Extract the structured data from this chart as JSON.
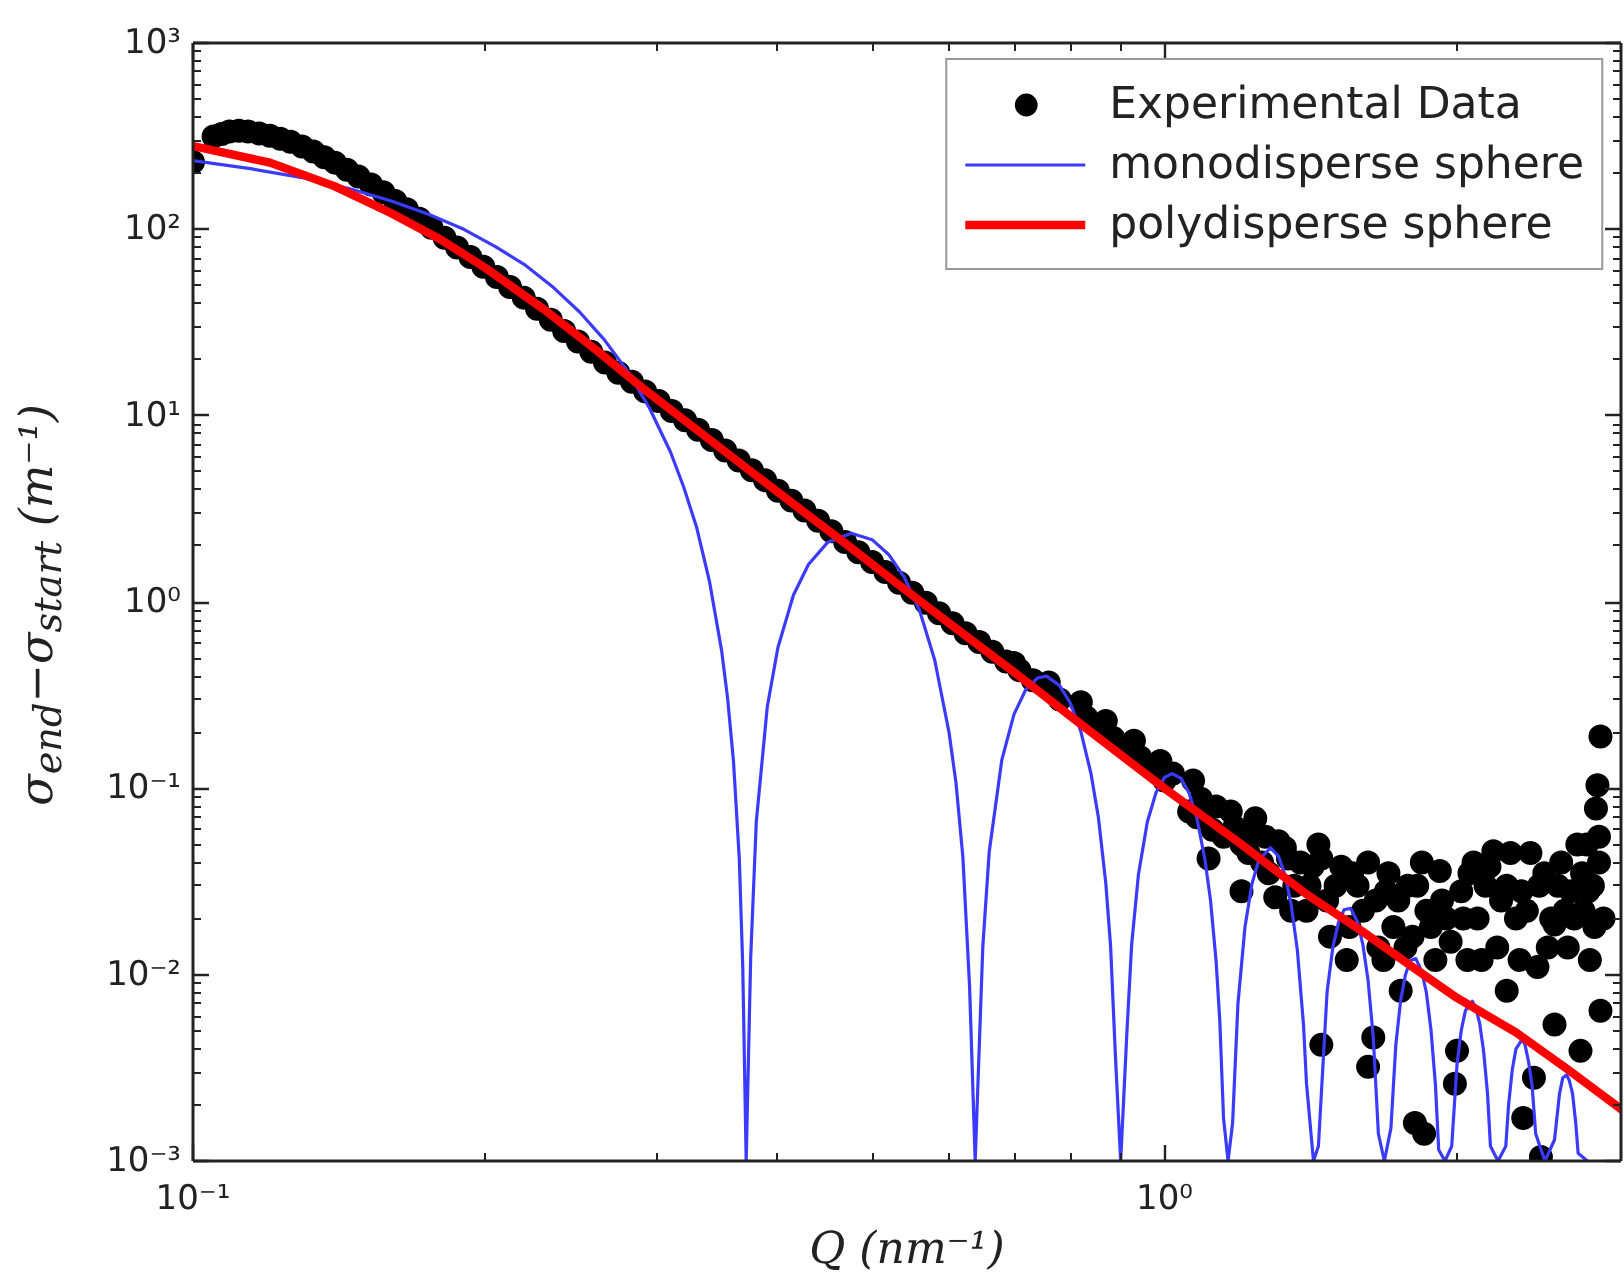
{
  "chart_data": {
    "type": "line",
    "xlabel": "Q (nm⁻¹)",
    "ylabel": "σ$_{end}$−σ$_{start}$ (m⁻¹)",
    "log": "xy",
    "grid": false,
    "legend": "top right",
    "xlim": [
      0.1,
      2.95
    ],
    "ylim": [
      0.001,
      1000
    ],
    "xticks": [
      {
        "value": 0.1,
        "label": "10⁻¹"
      },
      {
        "value": 0.2,
        "label": null
      },
      {
        "value": 0.3,
        "label": null
      },
      {
        "value": 0.4,
        "label": null
      },
      {
        "value": 0.5,
        "label": null
      },
      {
        "value": 0.6,
        "label": null
      },
      {
        "value": 0.7,
        "label": null
      },
      {
        "value": 0.8,
        "label": null
      },
      {
        "value": 0.9,
        "label": null
      },
      {
        "value": 1,
        "label": "10⁰"
      },
      {
        "value": 2,
        "label": null
      }
    ],
    "yticks": [
      {
        "value": 0.001,
        "label": "10⁻³"
      },
      {
        "value": 0.002,
        "label": null
      },
      {
        "value": 0.003,
        "label": null
      },
      {
        "value": 0.004,
        "label": null
      },
      {
        "value": 0.005,
        "label": null
      },
      {
        "value": 0.006,
        "label": null
      },
      {
        "value": 0.007,
        "label": null
      },
      {
        "value": 0.008,
        "label": null
      },
      {
        "value": 0.009,
        "label": null
      },
      {
        "value": 0.01,
        "label": "10⁻²"
      },
      {
        "value": 0.02,
        "label": null
      },
      {
        "value": 0.03,
        "label": null
      },
      {
        "value": 0.04,
        "label": null
      },
      {
        "value": 0.05,
        "label": null
      },
      {
        "value": 0.06,
        "label": null
      },
      {
        "value": 0.07,
        "label": null
      },
      {
        "value": 0.08,
        "label": null
      },
      {
        "value": 0.09,
        "label": null
      },
      {
        "value": 0.1,
        "label": "10⁻¹"
      },
      {
        "value": 0.2,
        "label": null
      },
      {
        "value": 0.3,
        "label": null
      },
      {
        "value": 0.4,
        "label": null
      },
      {
        "value": 0.5,
        "label": null
      },
      {
        "value": 0.6,
        "label": null
      },
      {
        "value": 0.7,
        "label": null
      },
      {
        "value": 0.8,
        "label": null
      },
      {
        "value": 0.9,
        "label": null
      },
      {
        "value": 1,
        "label": "10⁰"
      },
      {
        "value": 2,
        "label": null
      },
      {
        "value": 3,
        "label": null
      },
      {
        "value": 4,
        "label": null
      },
      {
        "value": 5,
        "label": null
      },
      {
        "value": 6,
        "label": null
      },
      {
        "value": 7,
        "label": null
      },
      {
        "value": 8,
        "label": null
      },
      {
        "value": 9,
        "label": null
      },
      {
        "value": 10,
        "label": "10¹"
      },
      {
        "value": 20,
        "label": null
      },
      {
        "value": 30,
        "label": null
      },
      {
        "value": 40,
        "label": null
      },
      {
        "value": 50,
        "label": null
      },
      {
        "value": 60,
        "label": null
      },
      {
        "value": 70,
        "label": null
      },
      {
        "value": 80,
        "label": null
      },
      {
        "value": 90,
        "label": null
      },
      {
        "value": 100,
        "label": "10²"
      },
      {
        "value": 200,
        "label": null
      },
      {
        "value": 300,
        "label": null
      },
      {
        "value": 400,
        "label": null
      },
      {
        "value": 500,
        "label": null
      },
      {
        "value": 600,
        "label": null
      },
      {
        "value": 700,
        "label": null
      },
      {
        "value": 800,
        "label": null
      },
      {
        "value": 900,
        "label": null
      },
      {
        "value": 1000,
        "label": "10³"
      }
    ],
    "series": [
      {
        "name": "Experimental Data",
        "type": "scatter",
        "marker": "circle",
        "color": "#000000",
        "x": [
          0.1,
          0.105,
          0.107,
          0.109,
          0.1115,
          0.114,
          0.117,
          0.12,
          0.123,
          0.126,
          0.1295,
          0.133,
          0.1365,
          0.14,
          0.144,
          0.148,
          0.1525,
          0.157,
          0.1615,
          0.166,
          0.171,
          0.176,
          0.1815,
          0.187,
          0.193,
          0.199,
          0.2055,
          0.212,
          0.219,
          0.226,
          0.2335,
          0.241,
          0.249,
          0.257,
          0.2655,
          0.274,
          0.283,
          0.292,
          0.3015,
          0.311,
          0.321,
          0.331,
          0.342,
          0.353,
          0.3645,
          0.376,
          0.388,
          0.4,
          0.413,
          0.426,
          0.44,
          0.454,
          0.469,
          0.484,
          0.5,
          0.516,
          0.533,
          0.55,
          0.568,
          0.586,
          0.605,
          0.624,
          0.6445,
          0.665,
          0.687,
          0.7,
          0.709,
          0.732,
          0.76,
          0.78,
          0.82,
          0.831,
          0.858,
          0.87,
          0.886,
          0.914,
          0.93,
          0.944,
          0.974,
          0.99,
          1.0,
          1.02,
          1.06,
          1.07,
          1.08,
          1.09,
          1.11,
          1.12,
          1.13,
          1.15,
          1.17,
          1.18,
          1.2,
          1.2,
          1.22,
          1.23,
          1.24,
          1.26,
          1.27,
          1.28,
          1.3,
          1.31,
          1.33,
          1.34,
          1.35,
          1.36,
          1.38,
          1.4,
          1.41,
          1.42,
          1.44,
          1.45,
          1.45,
          1.47,
          1.48,
          1.5,
          1.52,
          1.54,
          1.55,
          1.56,
          1.58,
          1.6,
          1.62,
          1.62,
          1.64,
          1.65,
          1.66,
          1.68,
          1.69,
          1.7,
          1.72,
          1.74,
          1.75,
          1.77,
          1.78,
          1.8,
          1.81,
          1.82,
          1.84,
          1.85,
          1.86,
          1.88,
          1.9,
          1.92,
          1.93,
          1.95,
          1.97,
          1.99,
          2.0,
          2.02,
          2.03,
          2.05,
          2.06,
          2.08,
          2.1,
          2.12,
          2.14,
          2.16,
          2.18,
          2.2,
          2.22,
          2.25,
          2.25,
          2.27,
          2.3,
          2.32,
          2.33,
          2.34,
          2.36,
          2.38,
          2.4,
          2.42,
          2.43,
          2.44,
          2.46,
          2.48,
          2.5,
          2.52,
          2.52,
          2.54,
          2.56,
          2.58,
          2.6,
          2.62,
          2.64,
          2.66,
          2.68,
          2.69,
          2.7,
          2.72,
          2.73,
          2.74,
          2.76,
          2.77,
          2.78,
          2.79,
          2.8,
          2.8,
          2.81,
          2.81,
          2.83
        ],
        "values": [
          230,
          315,
          325,
          335,
          338,
          335,
          327,
          318,
          306,
          295,
          278,
          262,
          244,
          228,
          209,
          192,
          174,
          158,
          142,
          128,
          114,
          102,
          90,
          80,
          71,
          63,
          55.5,
          49,
          43,
          37.5,
          32.7,
          28.5,
          25,
          22,
          19.3,
          17,
          15.2,
          13.5,
          12.0,
          10.6,
          9.45,
          8.4,
          7.4,
          6.5,
          5.75,
          5.1,
          4.5,
          3.95,
          3.5,
          3.1,
          2.73,
          2.4,
          2.1,
          1.85,
          1.64,
          1.45,
          1.27,
          1.12,
          0.99,
          0.87,
          0.77,
          0.68,
          0.61,
          0.54,
          0.48,
          0.47,
          0.43,
          0.38,
          0.37,
          0.3,
          0.29,
          0.24,
          0.21,
          0.23,
          0.186,
          0.165,
          0.18,
          0.147,
          0.13,
          0.14,
          0.11,
          0.12,
          0.075,
          0.11,
          0.07,
          0.088,
          0.042,
          0.06,
          0.08,
          0.055,
          0.075,
          0.062,
          0.028,
          0.05,
          0.045,
          0.058,
          0.069,
          0.04,
          0.055,
          0.035,
          0.026,
          0.052,
          0.048,
          0.042,
          0.022,
          0.03,
          0.04,
          0.022,
          0.03,
          0.038,
          0.05,
          0.0042,
          0.042,
          0.025,
          0.016,
          0.03,
          0.038,
          0.012,
          0.018,
          0.035,
          0.03,
          0.022,
          0.0032,
          0.04,
          0.0046,
          0.025,
          0.014,
          0.012,
          0.028,
          0.035,
          0.018,
          0.025,
          0.0082,
          0.014,
          0.03,
          0.016,
          0.0016,
          0.03,
          0.04,
          0.0014,
          0.022,
          0.018,
          0.012,
          0.036,
          0.025,
          0.02,
          0.015,
          0.0026,
          0.0039,
          0.028,
          0.02,
          0.012,
          0.035,
          0.04,
          0.02,
          0.012,
          0.03,
          0.038,
          0.046,
          0.014,
          0.025,
          0.0082,
          0.03,
          0.045,
          0.02,
          0.012,
          0.028,
          0.0017,
          0.022,
          0.045,
          0.0028,
          0.011,
          0.03,
          0.00105,
          0.035,
          0.014,
          0.02,
          0.0054,
          0.0186,
          0.03,
          0.04,
          0.022,
          0.014,
          0.028,
          0.02,
          0.05,
          0.0039,
          0.035,
          0.022,
          0.05,
          0.028,
          0.012,
          0.03,
          0.018,
          0.078,
          0.104,
          0.04,
          0.055,
          0.0064,
          0.19,
          0.02
        ]
      },
      {
        "name": "monodisperse sphere",
        "color": "#3b3bff",
        "x": [
          0.1,
          0.115,
          0.13,
          0.145,
          0.16,
          0.175,
          0.19,
          0.205,
          0.22,
          0.235,
          0.25,
          0.265,
          0.28,
          0.295,
          0.31,
          0.32,
          0.33,
          0.34,
          0.35,
          0.355,
          0.36,
          0.365,
          0.368,
          0.371,
          0.375,
          0.38,
          0.39,
          0.4,
          0.415,
          0.43,
          0.45,
          0.476,
          0.5,
          0.52,
          0.54,
          0.56,
          0.58,
          0.6,
          0.61,
          0.62,
          0.63,
          0.6384,
          0.65,
          0.66,
          0.68,
          0.7,
          0.72,
          0.74,
          0.756,
          0.78,
          0.8,
          0.82,
          0.84,
          0.855,
          0.87,
          0.88,
          0.89,
          0.9012,
          0.915,
          0.925,
          0.94,
          0.96,
          0.98,
          1.0,
          1.018,
          1.04,
          1.06,
          1.08,
          1.1,
          1.115,
          1.13,
          1.14,
          1.15,
          1.1625,
          1.175,
          1.19,
          1.21,
          1.23,
          1.25,
          1.285,
          1.31,
          1.33,
          1.35,
          1.37,
          1.39,
          1.4,
          1.4232,
          1.44,
          1.47,
          1.49,
          1.51,
          1.53,
          1.554,
          1.58,
          1.6,
          1.62,
          1.64,
          1.66,
          1.6836,
          1.71,
          1.73,
          1.75,
          1.77,
          1.79,
          1.814,
          1.84,
          1.86,
          1.88,
          1.9,
          1.915,
          1.9438,
          1.975,
          2.0,
          2.02,
          2.04,
          2.074,
          2.09,
          2.11,
          2.13,
          2.15,
          2.165,
          2.2041,
          2.245,
          2.26,
          2.28,
          2.3,
          2.334,
          2.35,
          2.37,
          2.39,
          2.41,
          2.4636,
          2.52,
          2.55,
          2.57,
          2.594,
          2.61,
          2.63,
          2.65,
          2.665,
          2.724
        ],
        "values": [
          234,
          211,
          189,
          165,
          142,
          120,
          100,
          80.5,
          64,
          48.7,
          36,
          25.6,
          17.4,
          11.0,
          6.4,
          4.13,
          2.5,
          1.3,
          0.55,
          0.306,
          0.14,
          0.042,
          0.0111,
          0.001,
          0.0124,
          0.066,
          0.273,
          0.57,
          1.09,
          1.59,
          2.09,
          2.34,
          2.16,
          1.8,
          1.35,
          0.89,
          0.488,
          0.2,
          0.107,
          0.043,
          0.0086,
          0.001,
          0.014,
          0.0457,
          0.142,
          0.25,
          0.34,
          0.391,
          0.4,
          0.356,
          0.286,
          0.202,
          0.12,
          0.0695,
          0.031,
          0.0142,
          0.0037,
          0.001,
          0.0051,
          0.0145,
          0.0345,
          0.066,
          0.095,
          0.1145,
          0.12,
          0.113,
          0.094,
          0.0686,
          0.042,
          0.0252,
          0.0118,
          0.0056,
          0.0017,
          0.001,
          0.0016,
          0.007,
          0.018,
          0.0306,
          0.041,
          0.048,
          0.0432,
          0.0345,
          0.0238,
          0.0135,
          0.0054,
          0.0026,
          0.001,
          0.0012,
          0.0081,
          0.014,
          0.019,
          0.0223,
          0.0227,
          0.0192,
          0.0145,
          0.0093,
          0.0046,
          0.0014,
          0.001,
          0.0015,
          0.0042,
          0.0073,
          0.01,
          0.0119,
          0.0122,
          0.0104,
          0.008,
          0.0051,
          0.0026,
          0.00115,
          0.001,
          0.0012,
          0.0033,
          0.005,
          0.0064,
          0.0072,
          0.0067,
          0.0055,
          0.0039,
          0.0023,
          0.0012,
          0.001,
          0.0012,
          0.002,
          0.0031,
          0.004,
          0.0045,
          0.0042,
          0.0034,
          0.0025,
          0.0014,
          0.001,
          0.0013,
          0.0023,
          0.0028,
          0.0029,
          0.0027,
          0.0023,
          0.0016,
          0.0011,
          0.001
        ]
      },
      {
        "name": "polydisperse sphere",
        "color": "#ff0000",
        "x": [
          0.1,
          0.12,
          0.14,
          0.16,
          0.18,
          0.2,
          0.23,
          0.26,
          0.29,
          0.33,
          0.37,
          0.42,
          0.47,
          0.53,
          0.6,
          0.7,
          0.8,
          0.9,
          1.0,
          1.2,
          1.4,
          1.6,
          1.8,
          2.0,
          2.3,
          2.6,
          2.95
        ],
        "values": [
          280,
          228,
          170,
          122,
          88,
          62,
          37,
          22.5,
          14.1,
          8.4,
          5.3,
          3.2,
          2.05,
          1.26,
          0.77,
          0.42,
          0.244,
          0.152,
          0.1,
          0.05,
          0.027,
          0.017,
          0.011,
          0.0075,
          0.0049,
          0.0031,
          0.0019
        ]
      }
    ]
  }
}
